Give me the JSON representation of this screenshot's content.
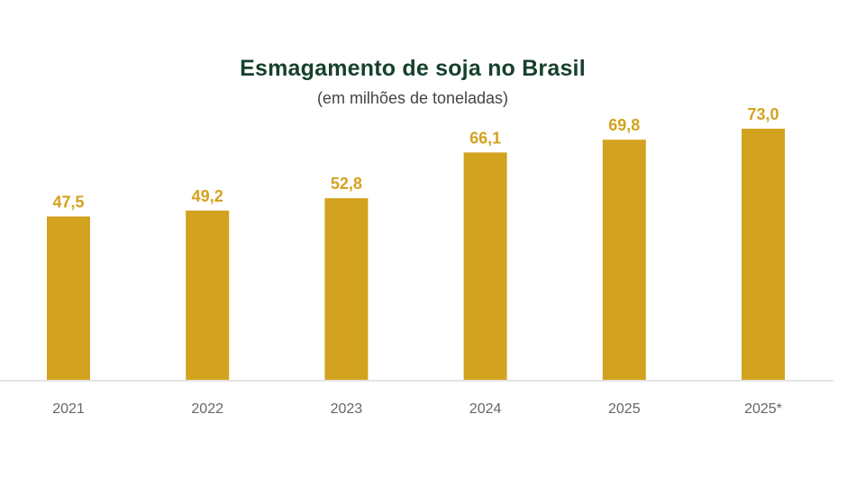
{
  "chart_data": {
    "type": "bar",
    "title": "Esmagamento de soja no Brasil",
    "subtitle": "(em milhões de toneladas)",
    "categories": [
      "2021",
      "2022",
      "2023",
      "2024",
      "2025",
      "2025*"
    ],
    "values": [
      47.5,
      49.2,
      52.8,
      66.1,
      69.8,
      73.0
    ],
    "value_labels": [
      "47,5",
      "49,2",
      "52,8",
      "66,1",
      "69,8",
      "73,0"
    ],
    "ylim": [
      0,
      73.0
    ],
    "grid": false,
    "legend": "none",
    "bar_color": "#d3a21e",
    "title_color": "#17402d"
  }
}
